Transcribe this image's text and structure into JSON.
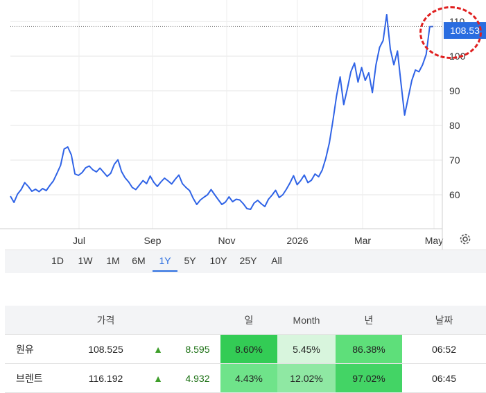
{
  "chart_data": {
    "type": "line",
    "x_labels": [
      "Jul",
      "Sep",
      "Nov",
      "2026",
      "Mar",
      "May"
    ],
    "y_ticks": [
      60,
      70,
      80,
      90,
      100,
      110
    ],
    "ylim": [
      50,
      112
    ],
    "last_price": "108.53",
    "series": [
      {
        "values": [
          59.6,
          57.8,
          60.2,
          61.5,
          63.5,
          62.4,
          61.0,
          61.6,
          60.9,
          61.8,
          61.2,
          62.7,
          64.0,
          66.2,
          68.5,
          73.2,
          73.8,
          71.5,
          66.0,
          65.6,
          66.4,
          67.8,
          68.3,
          67.2,
          66.6,
          67.7,
          66.5,
          65.3,
          66.2,
          68.8,
          70.1,
          66.7,
          64.9,
          63.7,
          62.1,
          61.5,
          62.8,
          64.1,
          63.2,
          65.4,
          63.6,
          62.4,
          63.7,
          64.8,
          64.0,
          63.1,
          64.5,
          65.7,
          63.2,
          62.1,
          61.2,
          59.0,
          57.2,
          58.5,
          59.3,
          60.0,
          61.5,
          60.0,
          58.6,
          57.2,
          57.9,
          59.4,
          58.0,
          58.7,
          58.5,
          57.4,
          56.0,
          55.8,
          57.6,
          58.4,
          57.4,
          56.6,
          58.7,
          59.9,
          61.3,
          59.2,
          60.0,
          61.6,
          63.4,
          65.5,
          62.9,
          64.1,
          65.7,
          63.5,
          64.2,
          66.0,
          65.2,
          67.1,
          70.5,
          75.0,
          81.5,
          88.5,
          94.0,
          86.0,
          90.5,
          95.5,
          98.0,
          92.5,
          96.7,
          93.0,
          95.2,
          89.5,
          97.5,
          102.5,
          104.5,
          112.0,
          102.0,
          97.5,
          101.5,
          92.0,
          83.0,
          88.0,
          93.0,
          96.0,
          95.5,
          97.5,
          100.5,
          108.5,
          108.53
        ]
      }
    ]
  },
  "range_tabs": [
    {
      "label": "1D",
      "active": false
    },
    {
      "label": "1W",
      "active": false
    },
    {
      "label": "1M",
      "active": false
    },
    {
      "label": "6M",
      "active": false
    },
    {
      "label": "1Y",
      "active": true
    },
    {
      "label": "5Y",
      "active": false
    },
    {
      "label": "10Y",
      "active": false
    },
    {
      "label": "25Y",
      "active": false
    },
    {
      "label": "All",
      "active": false
    }
  ],
  "table": {
    "headers": {
      "price": "가격",
      "day": "일",
      "month": "Month",
      "year": "년",
      "date": "날짜"
    },
    "rows": [
      {
        "name": "원유",
        "price": "108.525",
        "arrow": "▲",
        "change": "8.595",
        "day": "8.60%",
        "month": "5.45%",
        "year": "86.38%",
        "time": "06:52"
      },
      {
        "name": "브렌트",
        "price": "116.192",
        "arrow": "▲",
        "change": "4.932",
        "day": "4.43%",
        "month": "12.02%",
        "year": "97.02%",
        "time": "06:45"
      }
    ]
  },
  "colors": {
    "line": "#2f63e6",
    "accent": "#2a6de0",
    "highlight": "#e01f1f"
  }
}
